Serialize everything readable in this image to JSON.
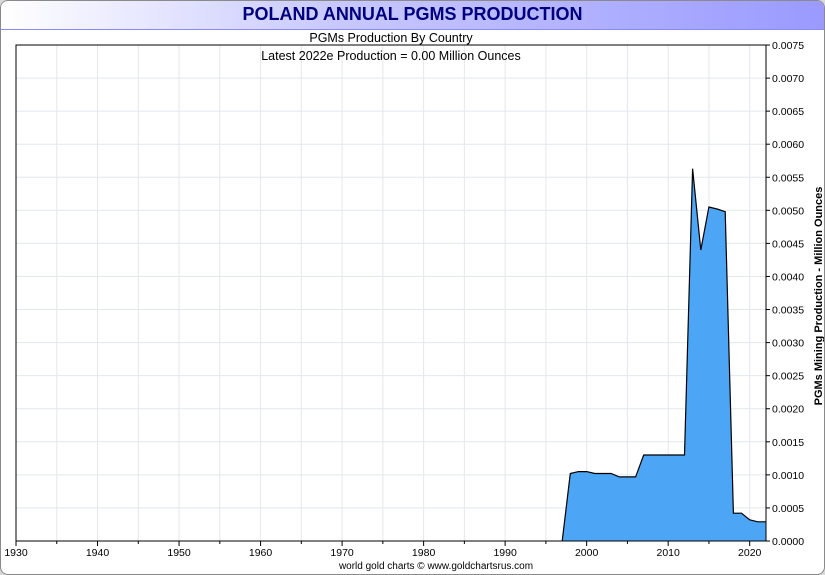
{
  "header": {
    "title": "POLAND ANNUAL PGMS PRODUCTION"
  },
  "footer": {
    "credit": "world gold charts © www.goldchartsrus.com"
  },
  "chart_data": {
    "type": "area",
    "title": "POLAND ANNUAL PGMS PRODUCTION",
    "subtitle": "PGMs Production By Country",
    "annotation": "Latest 2022e Production = 0.00 Million Ounces",
    "xlabel": "",
    "ylabel": "PGMs Mining Production - Million Ounces",
    "xlim": [
      1930,
      2022
    ],
    "ylim": [
      0,
      0.0075
    ],
    "x_ticks": [
      1930,
      1940,
      1950,
      1960,
      1970,
      1980,
      1990,
      2000,
      2010,
      2020
    ],
    "y_ticks": [
      "0.0000",
      "0.0005",
      "0.0010",
      "0.0015",
      "0.0020",
      "0.0025",
      "0.0030",
      "0.0035",
      "0.0040",
      "0.0045",
      "0.0050",
      "0.0055",
      "0.0060",
      "0.0065",
      "0.0070",
      "0.0075"
    ],
    "grid": true,
    "fill_color": "#4da6f5",
    "line_color": "#000000",
    "series": [
      {
        "x": [
          1997,
          1998,
          1999,
          2000,
          2001,
          2002,
          2003,
          2004,
          2005,
          2006,
          2007,
          2008,
          2009,
          2010,
          2011,
          2012,
          2013,
          2014,
          2015,
          2016,
          2017,
          2018,
          2019,
          2020,
          2021,
          2022
        ],
        "values": [
          0,
          0.00102,
          0.00105,
          0.00105,
          0.00102,
          0.00102,
          0.00102,
          0.00097,
          0.00097,
          0.00097,
          0.0013,
          0.0013,
          0.0013,
          0.0013,
          0.0013,
          0.0013,
          0.00563,
          0.0044,
          0.00505,
          0.00502,
          0.00498,
          0.00042,
          0.00042,
          0.00032,
          0.00029,
          0.00029
        ]
      }
    ]
  }
}
